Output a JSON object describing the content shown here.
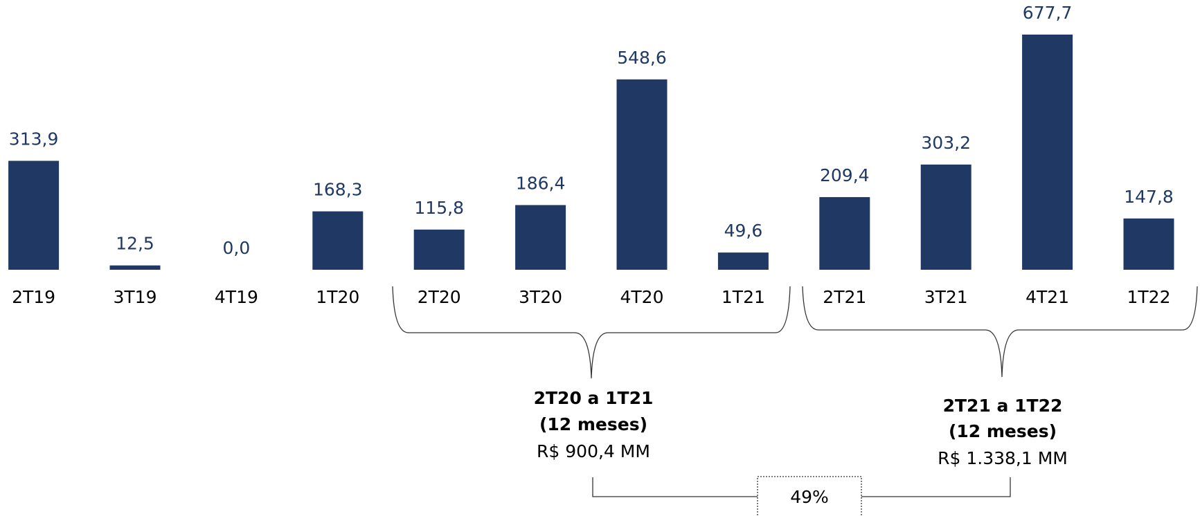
{
  "chart_data": {
    "type": "bar",
    "categories": [
      "2T19",
      "3T19",
      "4T19",
      "1T20",
      "2T20",
      "3T20",
      "4T20",
      "1T21",
      "2T21",
      "3T21",
      "4T21",
      "1T22"
    ],
    "values": [
      313.9,
      12.5,
      0.0,
      168.3,
      115.8,
      186.4,
      548.6,
      49.6,
      209.4,
      303.2,
      677.7,
      147.8
    ],
    "value_labels": [
      "313,9",
      "12,5",
      "0,0",
      "168,3",
      "115,8",
      "186,4",
      "548,6",
      "49,6",
      "209,4",
      "303,2",
      "677,7",
      "147,8"
    ],
    "color": "#1f3864",
    "annotations": [
      {
        "period": "2T20 a 1T21",
        "duration": "(12 meses)",
        "total": "R$ 900,4 MM"
      },
      {
        "period": "2T21 a 1T22",
        "duration": "(12 meses)",
        "total": "R$ 1.338,1 MM"
      }
    ],
    "growth": "49%"
  }
}
